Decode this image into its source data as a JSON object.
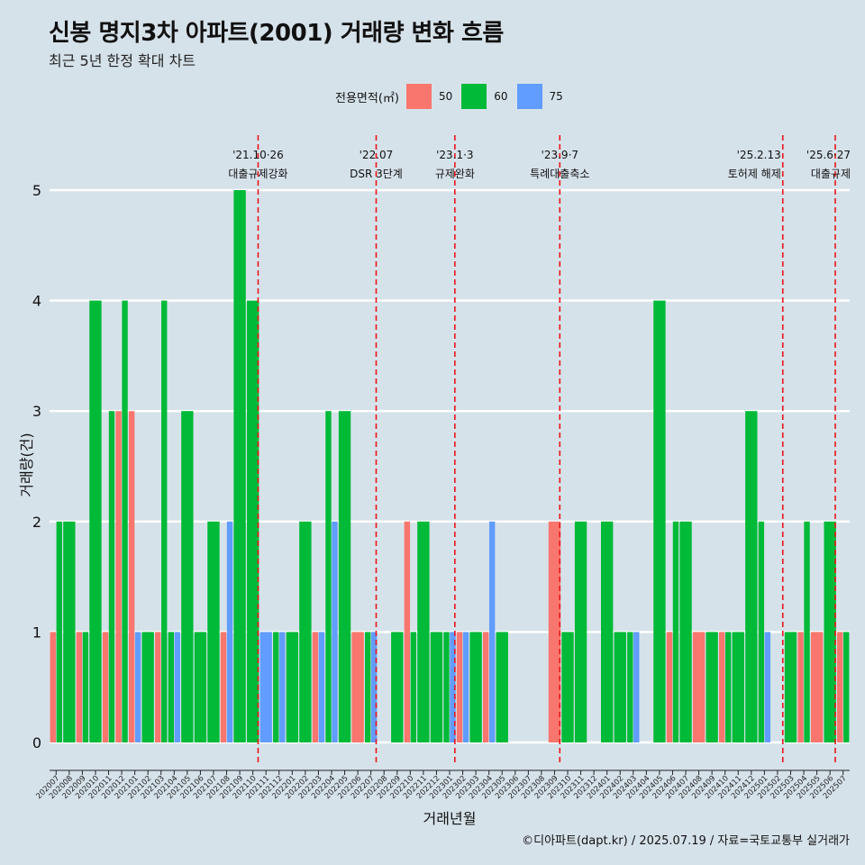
{
  "title": "신봉 명지3차 아파트(2001) 거래량 변화 흐름",
  "subtitle": "최근 5년 한정 확대 차트",
  "caption": "©디아파트(dapt.kr) / 2025.07.19 / 자료=국토교통부 실거래가",
  "legend": {
    "title": "전용면적(㎡)",
    "items": [
      {
        "label": "50",
        "color": "#f8766d"
      },
      {
        "label": "60",
        "color": "#00ba38"
      },
      {
        "label": "75",
        "color": "#619cff"
      }
    ]
  },
  "chart_data": {
    "type": "bar",
    "title": "신봉 명지3차 아파트(2001) 거래량 변화 흐름",
    "subtitle": "최근 5년 한정 확대 차트",
    "xlabel": "거래년월",
    "ylabel": "거래량(건)",
    "ylim": [
      0,
      5
    ],
    "yticks": [
      0,
      1,
      2,
      3,
      4,
      5
    ],
    "grid": true,
    "legend_position": "top",
    "months": [
      "202007",
      "202008",
      "202009",
      "202010",
      "202011",
      "202012",
      "202101",
      "202102",
      "202103",
      "202104",
      "202105",
      "202106",
      "202107",
      "202108",
      "202109",
      "202110",
      "202111",
      "202112",
      "202201",
      "202202",
      "202203",
      "202204",
      "202205",
      "202206",
      "202207",
      "202208",
      "202209",
      "202210",
      "202211",
      "202212",
      "202301",
      "202302",
      "202303",
      "202304",
      "202305",
      "202306",
      "202307",
      "202308",
      "202309",
      "202310",
      "202311",
      "202312",
      "202401",
      "202402",
      "202403",
      "202404",
      "202405",
      "202406",
      "202407",
      "202408",
      "202409",
      "202410",
      "202411",
      "202412",
      "202501",
      "202502",
      "202503",
      "202504",
      "202505",
      "202506",
      "202507"
    ],
    "series": [
      {
        "name": "50",
        "color": "#f8766d",
        "values": [
          1,
          0,
          1,
          0,
          1,
          3,
          3,
          0,
          1,
          0,
          0,
          0,
          0,
          1,
          0,
          0,
          0,
          0,
          0,
          0,
          1,
          0,
          0,
          1,
          0,
          0,
          0,
          2,
          0,
          0,
          0,
          1,
          0,
          1,
          0,
          0,
          0,
          0,
          2,
          0,
          0,
          0,
          0,
          0,
          0,
          0,
          0,
          1,
          0,
          1,
          0,
          1,
          0,
          0,
          0,
          0,
          0,
          1,
          1,
          0,
          1
        ]
      },
      {
        "name": "60",
        "color": "#00ba38",
        "values": [
          2,
          2,
          1,
          4,
          3,
          4,
          0,
          1,
          4,
          1,
          3,
          1,
          2,
          0,
          5,
          4,
          0,
          1,
          1,
          2,
          0,
          3,
          3,
          0,
          1,
          0,
          1,
          1,
          2,
          1,
          1,
          0,
          1,
          0,
          1,
          0,
          0,
          0,
          0,
          1,
          2,
          0,
          2,
          1,
          1,
          0,
          4,
          2,
          2,
          0,
          1,
          1,
          1,
          3,
          2,
          0,
          1,
          2,
          0,
          2,
          1
        ]
      },
      {
        "name": "75",
        "color": "#619cff",
        "values": [
          0,
          0,
          0,
          0,
          0,
          0,
          1,
          0,
          0,
          1,
          0,
          0,
          0,
          2,
          0,
          0,
          1,
          1,
          0,
          0,
          1,
          2,
          0,
          0,
          1,
          0,
          0,
          0,
          0,
          0,
          1,
          1,
          0,
          2,
          0,
          0,
          0,
          0,
          0,
          0,
          0,
          0,
          0,
          0,
          1,
          0,
          0,
          0,
          0,
          0,
          0,
          0,
          0,
          0,
          1,
          0,
          0,
          0,
          0,
          0,
          0
        ]
      }
    ],
    "annotations": [
      {
        "date": "'21.10·26",
        "label": "대출규제강화",
        "month": "202110"
      },
      {
        "date": "'22.07",
        "label": "DSR 3단계",
        "month": "202207"
      },
      {
        "date": "'23.1·3",
        "label": "규제완화",
        "month": "202301"
      },
      {
        "date": "'23.9·7",
        "label": "특례대출축소",
        "month": "202309"
      },
      {
        "date": "'25.2.13",
        "label": "토허제 해제",
        "month": "202502"
      },
      {
        "date": "'25.6·27",
        "label": "대출규제",
        "month": "202506"
      }
    ]
  }
}
